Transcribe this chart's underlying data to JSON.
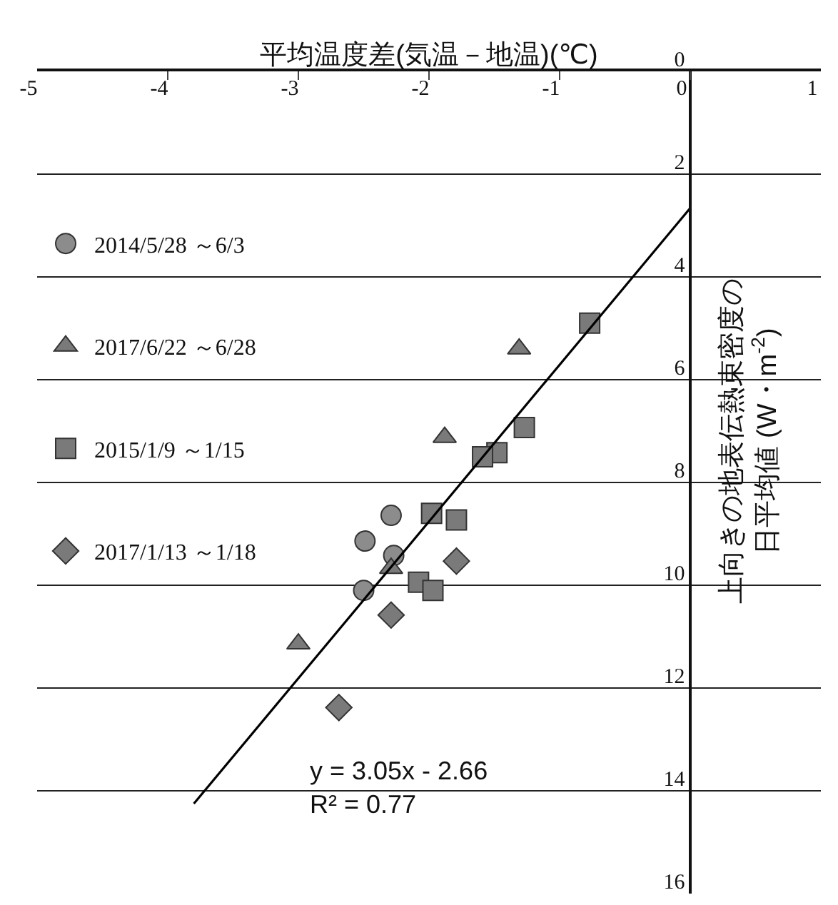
{
  "chart_data": {
    "type": "scatter",
    "xlabel": "平均温度差(気温－地温)(℃)",
    "ylabel": "上向きの地表伝熱束密度の日平均値 (W・m$^{-2}$)",
    "xlim": [
      -5,
      1
    ],
    "xticks": [
      -5,
      -4,
      -3,
      -2,
      -1,
      0,
      1
    ],
    "ylim": [
      -16,
      0
    ],
    "yticks": [
      0,
      {
        "value": -2,
        "label": "2"
      },
      {
        "value": -4,
        "label": "4"
      },
      {
        "value": -6,
        "label": "6"
      },
      {
        "value": -8,
        "label": "8"
      },
      {
        "value": -10,
        "label": "10"
      },
      {
        "value": -12,
        "label": "12"
      },
      {
        "value": -14,
        "label": "14"
      },
      {
        "value": -16,
        "label": "16"
      }
    ],
    "grid": "y",
    "legend": "left",
    "series": [
      {
        "name": "2014/5/28 ～6/3",
        "color": "#8c8c8c",
        "marker": "circle",
        "x": [
          -2.29,
          -2.49,
          -2.27,
          -2.5
        ],
        "values": [
          -8.64,
          -9.14,
          -9.42,
          -10.1
        ]
      },
      {
        "name": "2017/6/22 ～6/28",
        "color": "#7a7a7a",
        "marker": "triangle",
        "x": [
          -1.31,
          -1.88,
          -2.29,
          -3.0
        ],
        "values": [
          -5.4,
          -7.12,
          -9.67,
          -11.14
        ]
      },
      {
        "name": "2015/1/9 ～1/15",
        "color": "#7a7a7a",
        "marker": "square",
        "x": [
          -0.77,
          -1.27,
          -1.48,
          -1.59,
          -1.98,
          -1.79,
          -2.08,
          -1.97
        ],
        "values": [
          -4.9,
          -6.93,
          -7.42,
          -7.5,
          -8.6,
          -8.73,
          -9.94,
          -10.1
        ]
      },
      {
        "name": "2017/1/13 ～1/18",
        "color": "#7a7a7a",
        "marker": "diamond",
        "x": [
          -1.79,
          -2.29,
          -2.69
        ],
        "values": [
          -9.53,
          -10.58,
          -12.38
        ]
      },
      {
        "type": "line",
        "color": "#000000",
        "marker": "none",
        "x": [
          -3.8,
          0
        ],
        "values": [
          -14.25,
          -2.66
        ]
      }
    ],
    "annotations": [
      "y = 3.05x - 2.66\nR² = 0.77"
    ]
  }
}
